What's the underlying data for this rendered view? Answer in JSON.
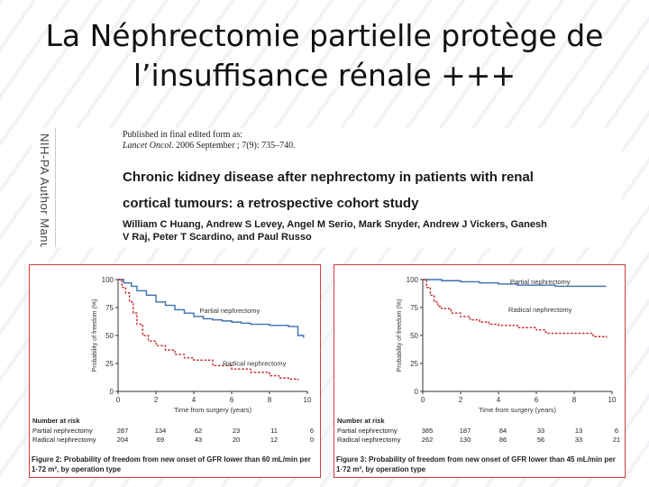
{
  "slide": {
    "title_line1": "La Néphrectomie partielle protège de",
    "title_line2": "l’insuffisance rénale +++"
  },
  "paper": {
    "side_label": "NIH-PA Author Manu",
    "published_line": "Published in final edited form as:",
    "journal": "Lancet Oncol",
    "citation": ". 2006 September ; 7(9): 735–740.",
    "title_line1": "Chronic kidney disease after nephrectomy in patients with renal",
    "title_line2": "cortical tumours: a retrospective cohort study",
    "authors_line1": "William C Huang, Andrew S Levey, Angel M Serio, Mark Snyder, Andrew J Vickers, Ganesh",
    "authors_line2": "V Raj, Peter T Scardino, and Paul Russo"
  },
  "colors": {
    "partial": "#3c6fb0",
    "radical": "#c0282d",
    "frame": "#d83a3a",
    "axis": "#333333"
  },
  "figures": [
    {
      "caption_bold": "Figure 2: Probability of freedom from new onset of GFR lower than 60 mL/min per 1·72 m², by operation type",
      "risk_header": "Number at risk",
      "risk_times": [
        0,
        2,
        4,
        6,
        8,
        10
      ],
      "risk_rows": [
        {
          "label": "Partial nephrectomy",
          "values": [
            "287",
            "134",
            "62",
            "23",
            "11",
            "6"
          ]
        },
        {
          "label": "Radical nephrectomy",
          "values": [
            "204",
            "69",
            "43",
            "20",
            "12",
            "0"
          ]
        }
      ]
    },
    {
      "caption_bold": "Figure 3: Probability of freedom from new onset of GFR lower than 45 mL/min per 1·72 m², by operation type",
      "risk_header": "Number at risk",
      "risk_times": [
        0,
        2,
        4,
        6,
        8,
        10
      ],
      "risk_rows": [
        {
          "label": "Partial nephrectomy",
          "values": [
            "385",
            "187",
            "84",
            "33",
            "13",
            "6"
          ]
        },
        {
          "label": "Radical nephrectomy",
          "values": [
            "262",
            "130",
            "86",
            "56",
            "33",
            "21"
          ]
        }
      ]
    }
  ],
  "chart_data": [
    {
      "type": "line",
      "title": "",
      "xlabel": "Time from surgery (years)",
      "ylabel": "Probability of freedom (%)",
      "xlim": [
        0,
        10
      ],
      "ylim": [
        0,
        100
      ],
      "xticks": [
        0,
        2,
        4,
        6,
        8,
        10
      ],
      "yticks": [
        0,
        25,
        50,
        75,
        100
      ],
      "series": [
        {
          "name": "Partial nephrectomy",
          "label": "Partial nephrectomy",
          "style": "solid",
          "x": [
            0,
            0.3,
            0.7,
            1.0,
            1.5,
            2.0,
            2.5,
            3.0,
            3.5,
            4.0,
            4.5,
            5.0,
            5.5,
            6.0,
            6.5,
            7.0,
            8.0,
            9.0,
            9.5,
            9.8
          ],
          "y": [
            100,
            97,
            94,
            90,
            86,
            80,
            77,
            73,
            70,
            67,
            65,
            64,
            63,
            62,
            61,
            60,
            59,
            58,
            50,
            48
          ]
        },
        {
          "name": "Radical nephrectomy",
          "label": "Radical nephrectomy",
          "style": "dashed",
          "x": [
            0,
            0.2,
            0.4,
            0.6,
            0.8,
            1.0,
            1.3,
            1.6,
            2.0,
            2.5,
            3.0,
            3.5,
            4.0,
            5.0,
            6.0,
            7.0,
            8.0,
            8.5,
            9.0,
            9.5
          ],
          "y": [
            100,
            93,
            88,
            80,
            70,
            60,
            50,
            45,
            41,
            37,
            33,
            30,
            28,
            23,
            20,
            17,
            14,
            12,
            11,
            10
          ]
        }
      ]
    },
    {
      "type": "line",
      "title": "",
      "xlabel": "Time from surgery (years)",
      "ylabel": "Probability of freedom (%)",
      "xlim": [
        0,
        10
      ],
      "ylim": [
        0,
        100
      ],
      "xticks": [
        0,
        2,
        4,
        6,
        8,
        10
      ],
      "yticks": [
        0,
        25,
        50,
        75,
        100
      ],
      "series": [
        {
          "name": "Partial nephrectomy",
          "label": "Partial nephrectomy",
          "style": "solid",
          "x": [
            0,
            1,
            2,
            3,
            4,
            5,
            6,
            7,
            8,
            9,
            9.7
          ],
          "y": [
            100,
            99,
            98,
            97,
            96,
            95,
            95,
            94,
            94,
            94,
            94
          ]
        },
        {
          "name": "Radical nephrectomy",
          "label": "Radical nephrectomy",
          "style": "dashed",
          "x": [
            0,
            0.2,
            0.4,
            0.6,
            0.8,
            1.0,
            1.5,
            2.0,
            2.5,
            3.0,
            3.5,
            4.0,
            5.0,
            6.0,
            6.5,
            8.0,
            9.0,
            9.7
          ],
          "y": [
            100,
            93,
            86,
            80,
            76,
            74,
            70,
            67,
            64,
            62,
            60,
            59,
            57,
            55,
            52,
            52,
            49,
            48
          ]
        }
      ]
    }
  ]
}
